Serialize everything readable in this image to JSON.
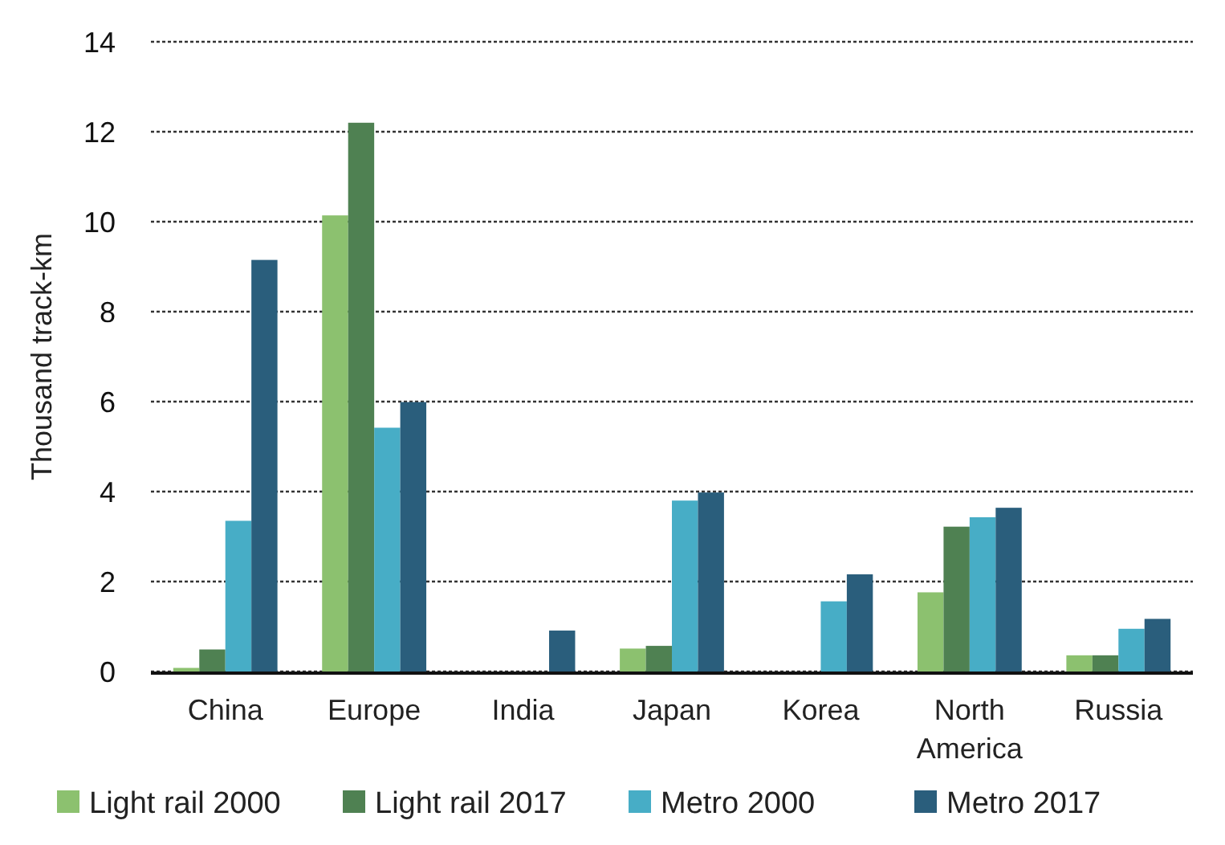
{
  "chart_data": {
    "type": "bar",
    "ylabel": "Thousand track-km",
    "categories": [
      "China",
      "Europe",
      "India",
      "Japan",
      "Korea",
      "North America",
      "Russia"
    ],
    "series": [
      {
        "name": "Light rail 2000",
        "color": "#8cc16f",
        "values": [
          0.08,
          10.14,
          0,
          0.51,
          0,
          1.76,
          0.36
        ]
      },
      {
        "name": "Light rail 2017",
        "color": "#4f8152",
        "values": [
          0.49,
          12.2,
          0,
          0.57,
          0,
          3.22,
          0.36
        ]
      },
      {
        "name": "Metro 2000",
        "color": "#47adc6",
        "values": [
          3.35,
          5.42,
          0,
          3.8,
          1.56,
          3.43,
          0.95
        ]
      },
      {
        "name": "Metro 2017",
        "color": "#2a5e7c",
        "values": [
          9.15,
          5.99,
          0.91,
          3.98,
          2.16,
          3.64,
          1.17
        ]
      }
    ],
    "ylim": [
      0,
      14
    ],
    "yticks": [
      0,
      2,
      4,
      6,
      8,
      10,
      12,
      14
    ],
    "grid": "y",
    "legend": "bottom"
  }
}
